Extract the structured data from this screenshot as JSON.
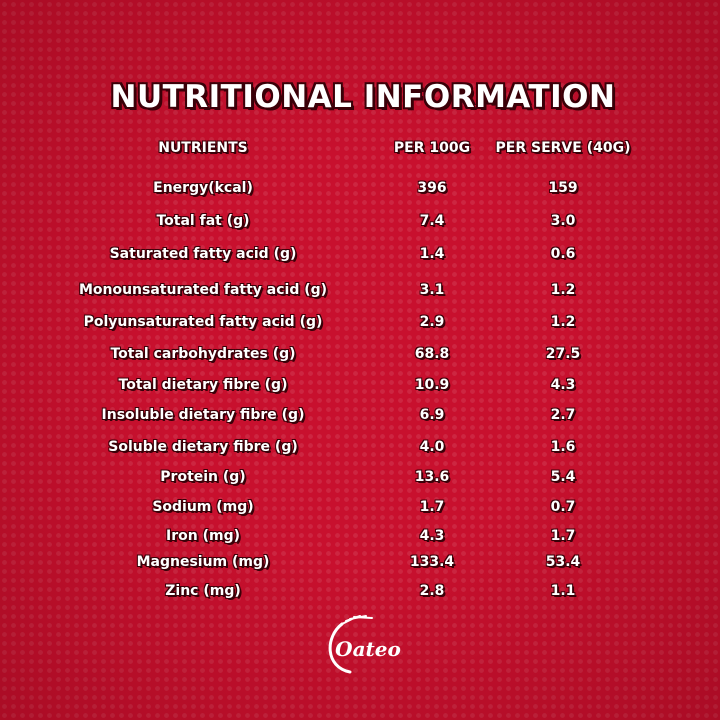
{
  "header": {
    "title": "NUTRITIONAL INFORMATION"
  },
  "table": {
    "columns": [
      "NUTRIENTS",
      "PER 100G",
      "PER SERVE (40G)"
    ],
    "rows": [
      [
        "Energy(kcal)",
        "396",
        "159"
      ],
      [
        "Total fat (g)",
        "7.4",
        "3.0"
      ],
      [
        "Saturated fatty acid (g)",
        "1.4",
        "0.6"
      ],
      [
        "Monounsaturated fatty acid (g)",
        "3.1",
        "1.2"
      ],
      [
        "Polyunsaturated fatty acid (g)",
        "2.9",
        "1.2"
      ],
      [
        "Total carbohydrates (g)",
        "68.8",
        "27.5"
      ],
      [
        "Total dietary fibre (g)",
        "10.9",
        "4.3"
      ],
      [
        "Insoluble dietary fibre (g)",
        "6.9",
        "2.7"
      ],
      [
        "Soluble dietary fibre (g)",
        "4.0",
        "1.6"
      ],
      [
        "Protein (g)",
        "13.6",
        "5.4"
      ],
      [
        "Sodium (mg)",
        "1.7",
        "0.7"
      ],
      [
        "Iron (mg)",
        "4.3",
        "1.7"
      ],
      [
        "Magnesium (mg)",
        "133.4",
        "53.4"
      ],
      [
        "Zinc (mg)",
        "2.8",
        "1.1"
      ]
    ]
  },
  "logo": {
    "text": "Oateo"
  }
}
